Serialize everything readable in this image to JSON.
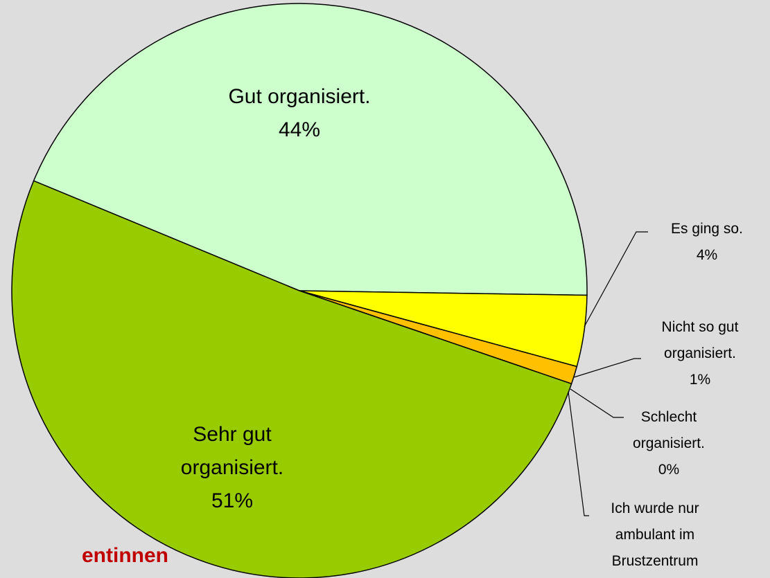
{
  "chart_data": {
    "type": "pie",
    "note_text": "entinnen",
    "categories": [
      "Gut organisiert.",
      "Es ging so.",
      "Nicht so gut organisiert.",
      "Schlecht organisiert.",
      "Ich wurde nur ambulant im Brustzentrum",
      "Sehr gut organisiert."
    ],
    "values": [
      44,
      4,
      1,
      0,
      0,
      51
    ],
    "value_labels": [
      "44%",
      "4%",
      "1%",
      "0%",
      null,
      "51%"
    ],
    "colors": [
      "#ccffcc",
      "#ffff00",
      "#ffc000",
      "#ff9900",
      "#ff6600",
      "#99cc00"
    ]
  }
}
